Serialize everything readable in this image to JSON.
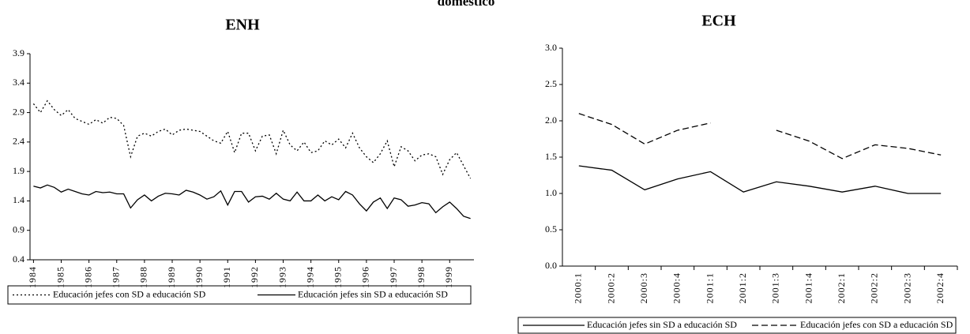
{
  "heading": "doméstico",
  "chart_data": [
    {
      "type": "line",
      "title": "ENH",
      "categories": [
        "1984",
        null,
        null,
        null,
        "1985",
        null,
        null,
        null,
        "1986",
        null,
        null,
        null,
        "1987",
        null,
        null,
        null,
        "1988",
        null,
        null,
        null,
        "1989",
        null,
        null,
        null,
        "1990",
        null,
        null,
        null,
        "1991",
        null,
        null,
        null,
        "1992",
        null,
        null,
        null,
        "1993",
        null,
        null,
        null,
        "1994",
        null,
        null,
        null,
        "1995",
        null,
        null,
        null,
        "1996",
        null,
        null,
        null,
        "1997",
        null,
        null,
        null,
        "1998",
        null,
        null,
        null,
        "1999",
        null,
        null,
        null
      ],
      "series": [
        {
          "name": "Educación jefes con SD a educación SD",
          "color": "#000000",
          "line_style": "dotted",
          "values": [
            3.05,
            2.9,
            3.1,
            2.95,
            2.85,
            2.95,
            2.8,
            2.75,
            2.7,
            2.78,
            2.72,
            2.82,
            2.8,
            2.68,
            2.15,
            2.5,
            2.55,
            2.5,
            2.58,
            2.62,
            2.52,
            2.6,
            2.62,
            2.6,
            2.58,
            2.5,
            2.42,
            2.38,
            2.58,
            2.22,
            2.55,
            2.55,
            2.25,
            2.5,
            2.52,
            2.2,
            2.6,
            2.35,
            2.25,
            2.4,
            2.22,
            2.25,
            2.42,
            2.35,
            2.45,
            2.3,
            2.55,
            2.3,
            2.15,
            2.05,
            2.2,
            2.42,
            1.98,
            2.32,
            2.25,
            2.08,
            2.18,
            2.2,
            2.15,
            1.85,
            2.1,
            2.22,
            2.0,
            1.78
          ]
        },
        {
          "name": "Educación jefes sin SD a educación SD",
          "color": "#000000",
          "line_style": "solid",
          "values": [
            1.65,
            1.62,
            1.67,
            1.63,
            1.55,
            1.6,
            1.56,
            1.52,
            1.5,
            1.56,
            1.54,
            1.55,
            1.52,
            1.52,
            1.28,
            1.42,
            1.5,
            1.4,
            1.48,
            1.53,
            1.52,
            1.5,
            1.58,
            1.55,
            1.5,
            1.43,
            1.47,
            1.57,
            1.33,
            1.56,
            1.56,
            1.38,
            1.47,
            1.48,
            1.43,
            1.53,
            1.43,
            1.4,
            1.55,
            1.4,
            1.4,
            1.5,
            1.4,
            1.47,
            1.42,
            1.56,
            1.5,
            1.35,
            1.23,
            1.38,
            1.45,
            1.27,
            1.45,
            1.42,
            1.31,
            1.33,
            1.37,
            1.35,
            1.2,
            1.3,
            1.38,
            1.27,
            1.14,
            1.1
          ]
        }
      ],
      "ylim": [
        0.4,
        3.9
      ],
      "yticks": [
        0.4,
        0.9,
        1.4,
        1.9,
        2.4,
        2.9,
        3.4,
        3.9
      ],
      "grid": false,
      "legend": "bottom"
    },
    {
      "type": "line",
      "title": "ECH",
      "categories": [
        "2000:1",
        "2000:2",
        "2000:3",
        "2000:4",
        "2001:1",
        "2001:2",
        "2001:3",
        "2001:4",
        "2002:1",
        "2002:2",
        "2002:3",
        "2002:4"
      ],
      "series": [
        {
          "name": "Educación jefes sin SD a educación SD",
          "color": "#000000",
          "line_style": "solid",
          "values": [
            1.38,
            1.32,
            1.05,
            1.2,
            1.3,
            1.02,
            1.16,
            1.1,
            1.02,
            1.1,
            1.0,
            1.0
          ]
        },
        {
          "name": "Educación jefes con SD a educación SD",
          "color": "#000000",
          "line_style": "dashed",
          "values": [
            2.1,
            1.95,
            1.68,
            1.87,
            1.97,
            null,
            1.87,
            1.72,
            1.48,
            1.67,
            1.62,
            1.53
          ]
        }
      ],
      "ylim": [
        0,
        3
      ],
      "yticks": [
        {
          "value": 0,
          "label": "0.0"
        },
        0.5,
        {
          "value": 1,
          "label": "1.0"
        },
        1.5,
        {
          "value": 2,
          "label": "2.0"
        },
        2.5,
        {
          "value": 3,
          "label": "3.0"
        }
      ],
      "grid": false,
      "legend": "bottom"
    }
  ]
}
